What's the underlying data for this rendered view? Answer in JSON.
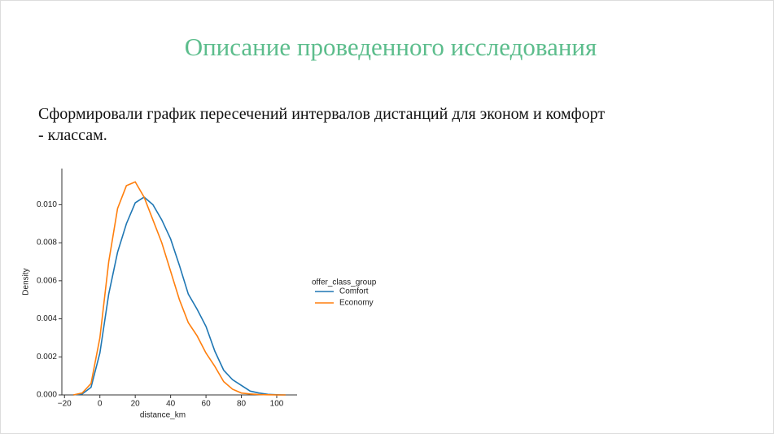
{
  "slide": {
    "title": "Описание проведенного исследования",
    "paragraph": "Сформировали график пересечений интервалов дистанций для эконом и комфорт - классам."
  },
  "chart_data": {
    "type": "line",
    "x": [
      -15,
      -10,
      -5,
      0,
      5,
      10,
      15,
      20,
      25,
      30,
      35,
      40,
      45,
      50,
      55,
      60,
      65,
      70,
      75,
      80,
      85,
      90,
      95,
      100,
      105
    ],
    "series": [
      {
        "name": "Comfort",
        "color": "#1f77b4",
        "values": [
          0,
          5e-05,
          0.0004,
          0.0022,
          0.0053,
          0.0075,
          0.009,
          0.0101,
          0.0104,
          0.01,
          0.0092,
          0.0082,
          0.0068,
          0.0053,
          0.0045,
          0.0036,
          0.0023,
          0.0013,
          0.0008,
          0.0005,
          0.0002,
          0.0001,
          3e-05,
          1e-05,
          0
        ]
      },
      {
        "name": "Economy",
        "color": "#ff7f0e",
        "values": [
          0,
          0.0001,
          0.0006,
          0.003,
          0.007,
          0.0098,
          0.011,
          0.0112,
          0.0104,
          0.0092,
          0.008,
          0.0065,
          0.005,
          0.0038,
          0.0031,
          0.0022,
          0.0015,
          0.0007,
          0.0003,
          0.0001,
          5e-05,
          2e-05,
          1e-05,
          0,
          0
        ]
      }
    ],
    "x_label": "distance_km",
    "y_label": "Density",
    "legend_title": "offer_class_group",
    "xlim": [
      -21.5,
      111.5
    ],
    "ylim": [
      0,
      0.0119
    ],
    "xticks": [
      {
        "value": -20,
        "label": "−20"
      },
      0,
      20,
      40,
      60,
      80,
      100
    ],
    "yticks": [
      {
        "value": 0,
        "label": "0.000"
      },
      {
        "value": 0.002,
        "label": "0.002"
      },
      {
        "value": 0.004,
        "label": "0.004"
      },
      {
        "value": 0.006,
        "label": "0.006"
      },
      {
        "value": 0.008,
        "label": "0.008"
      },
      {
        "value": 0.01,
        "label": "0.010"
      }
    ]
  }
}
